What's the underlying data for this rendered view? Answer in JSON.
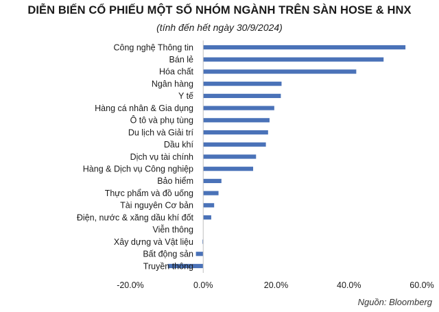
{
  "title": "DIỄN BIẾN CỔ PHIẾU MỘT SỐ NHÓM NGÀNH TRÊN SÀN HOSE & HNX",
  "subtitle": "(tính đến hết ngày 30/9/2024)",
  "source": "Nguồn: Bloomberg",
  "colors": {
    "bar": "#4a72b8",
    "axis": "#bfbfbf",
    "text": "#1a1a1a"
  },
  "chart_data": {
    "type": "bar",
    "orientation": "horizontal",
    "title": "DIỄN BIẾN CỔ PHIẾU MỘT SỐ NHÓM NGÀNH TRÊN SÀN HOSE & HNX",
    "subtitle": "(tính đến hết ngày 30/9/2024)",
    "xlabel": "",
    "ylabel": "",
    "xlim": [
      -0.2,
      0.6
    ],
    "xticks": [
      "-20.0%",
      "0.0%",
      "20.0%",
      "40.0%",
      "60.0%"
    ],
    "grid": false,
    "categories": [
      "Công nghệ Thông tin",
      "Bán lẻ",
      "Hóa chất",
      "Ngân hàng",
      "Y tế",
      "Hàng cá nhân & Gia dụng",
      "Ô tô và phụ tùng",
      "Du lịch và Giải trí",
      "Dầu khí",
      "Dịch vụ tài chính",
      "Hàng & Dịch vụ Công nghiệp",
      "Bảo hiểm",
      "Thực phẩm và đồ uống",
      "Tài nguyên Cơ bản",
      "Điện, nước & xăng dầu khí đốt",
      "Viễn thông",
      "Xây dựng và Vật liệu",
      "Bất động sản",
      "Truyền thông"
    ],
    "values": [
      0.555,
      0.495,
      0.42,
      0.215,
      0.213,
      0.195,
      0.182,
      0.178,
      0.172,
      0.145,
      0.137,
      0.05,
      0.042,
      0.03,
      0.022,
      0.0,
      -0.002,
      -0.02,
      -0.097
    ]
  }
}
